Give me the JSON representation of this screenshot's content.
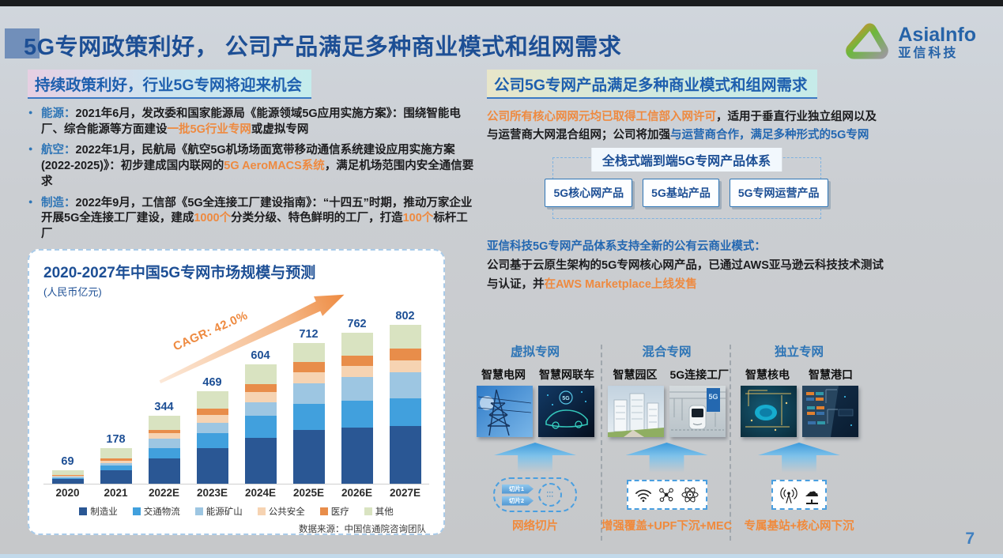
{
  "page": {
    "number": "7"
  },
  "header": {
    "title": "5G专网政策利好， 公司产品满足多种商业模式和组网需求",
    "logo": {
      "name": "AsiaInfo",
      "name_cn": "亚信科技"
    }
  },
  "left": {
    "heading": "持续政策利好，行业5G专网将迎来机会",
    "bullets": [
      {
        "segments": [
          {
            "t": "能源：",
            "c": "blue"
          },
          {
            "t": "2021年6月，发改委和国家能源局《能源领域5G应用实施方案》：围绕智能电厂、综合能源等方面建设",
            "c": "dark"
          },
          {
            "t": "一批5G行业专网",
            "c": "orange"
          },
          {
            "t": "或虚拟专网",
            "c": "dark"
          }
        ]
      },
      {
        "segments": [
          {
            "t": "航空：",
            "c": "blue"
          },
          {
            "t": "2022年1月，民航局《航空5G机场场面宽带移动通信系统建设应用实施方案(2022-2025)》：初步建成国内联网的",
            "c": "dark"
          },
          {
            "t": "5G AeroMACS系统",
            "c": "orange"
          },
          {
            "t": "，满足机场范围内安全通信要求",
            "c": "dark"
          }
        ]
      },
      {
        "segments": [
          {
            "t": "制造：",
            "c": "blue"
          },
          {
            "t": "2022年9月，工信部《5G全连接工厂建设指南》：“十四五”时期，推动万家企业开展5G全连接工厂建设，建成",
            "c": "dark"
          },
          {
            "t": "1000个",
            "c": "orange"
          },
          {
            "t": "分类分级、特色鲜明的工厂，打造",
            "c": "dark"
          },
          {
            "t": "100个",
            "c": "orange"
          },
          {
            "t": "标杆工厂",
            "c": "dark"
          }
        ]
      }
    ]
  },
  "chart_data": {
    "type": "bar",
    "stacked": true,
    "title": "2020-2027年中国5G专网市场规模与预测",
    "unit_label": "(人民币亿元)",
    "categories": [
      "2020",
      "2021",
      "2022E",
      "2023E",
      "2024E",
      "2025E",
      "2026E",
      "2027E"
    ],
    "totals": [
      69,
      178,
      344,
      469,
      604,
      712,
      762,
      802
    ],
    "series": [
      {
        "name": "制造业",
        "color": "#2a5794",
        "values": [
          22,
          68,
          127,
          180,
          232,
          273,
          285,
          290
        ]
      },
      {
        "name": "交通物流",
        "color": "#41a0dd",
        "values": [
          7,
          22,
          51,
          77,
          110,
          130,
          136,
          140
        ]
      },
      {
        "name": "能源矿山",
        "color": "#9dc6e2",
        "values": [
          6,
          15,
          51,
          51,
          71,
          104,
          117,
          132
        ]
      },
      {
        "name": "公共安全",
        "color": "#f6d3b2",
        "values": [
          4,
          12,
          25,
          39,
          52,
          58,
          58,
          60
        ]
      },
      {
        "name": "医疗",
        "color": "#e88d4a",
        "values": [
          4,
          10,
          19,
          32,
          39,
          52,
          52,
          60
        ]
      },
      {
        "name": "其他",
        "color": "#d9e3c1",
        "values": [
          26,
          51,
          71,
          90,
          100,
          95,
          114,
          120
        ]
      }
    ],
    "annotation": "CAGR: 42.0%",
    "source": "数据来源：中国信通院咨询团队",
    "legend_position": "bottom",
    "grid": false,
    "ylim": [
      0,
      850
    ]
  },
  "right": {
    "heading": "公司5G专网产品满足多种商业模式和组网需求",
    "intro_segments": [
      {
        "t": "公司所有核心网网元均已取得工信部入网许可",
        "c": "orange"
      },
      {
        "t": "，适用于垂直行业独立组网以及与运营商大网混合组网；公司将加强",
        "c": "dark"
      },
      {
        "t": "与运营商合作，满足多种形式的5G专网",
        "c": "bluebold"
      }
    ],
    "product_system": {
      "title": "全栈式端到端5G专网产品体系",
      "products": [
        "5G核心网产品",
        "5G基站产品",
        "5G专网运营产品"
      ]
    },
    "cloud": {
      "headline": "亚信科技5G专网产品体系支持全新的公有云商业模式：",
      "segments": [
        {
          "t": "公司基于云原生架构的5G专网核心网产品，已通过AWS亚马逊云科技技术测试与认证，并",
          "c": "dark"
        },
        {
          "t": "在AWS Marketplace上线发售",
          "c": "orange"
        }
      ]
    },
    "network_modes": [
      {
        "title": "虚拟专网",
        "cases": [
          {
            "label": "智慧电网"
          },
          {
            "label": "智慧网联车"
          }
        ],
        "tech": "网络切片"
      },
      {
        "title": "混合专网",
        "cases": [
          {
            "label": "智慧园区"
          },
          {
            "label": "5G连接工厂"
          }
        ],
        "tech": "增强覆盖+UPF下沉+MEC"
      },
      {
        "title": "独立专网",
        "cases": [
          {
            "label": "智慧核电"
          },
          {
            "label": "智慧港口"
          }
        ],
        "tech": "专属基站+核心网下沉"
      }
    ],
    "slice_tags": [
      "切片1",
      "切片2"
    ],
    "slice_dots": "···"
  },
  "colors": {
    "title_blue": "#1d4f95",
    "accent_blue": "#2e75b6",
    "accent_orange": "#ee8a40",
    "highlight_pink": "#e7cfe2",
    "highlight_cyan": "#c5ecec"
  }
}
